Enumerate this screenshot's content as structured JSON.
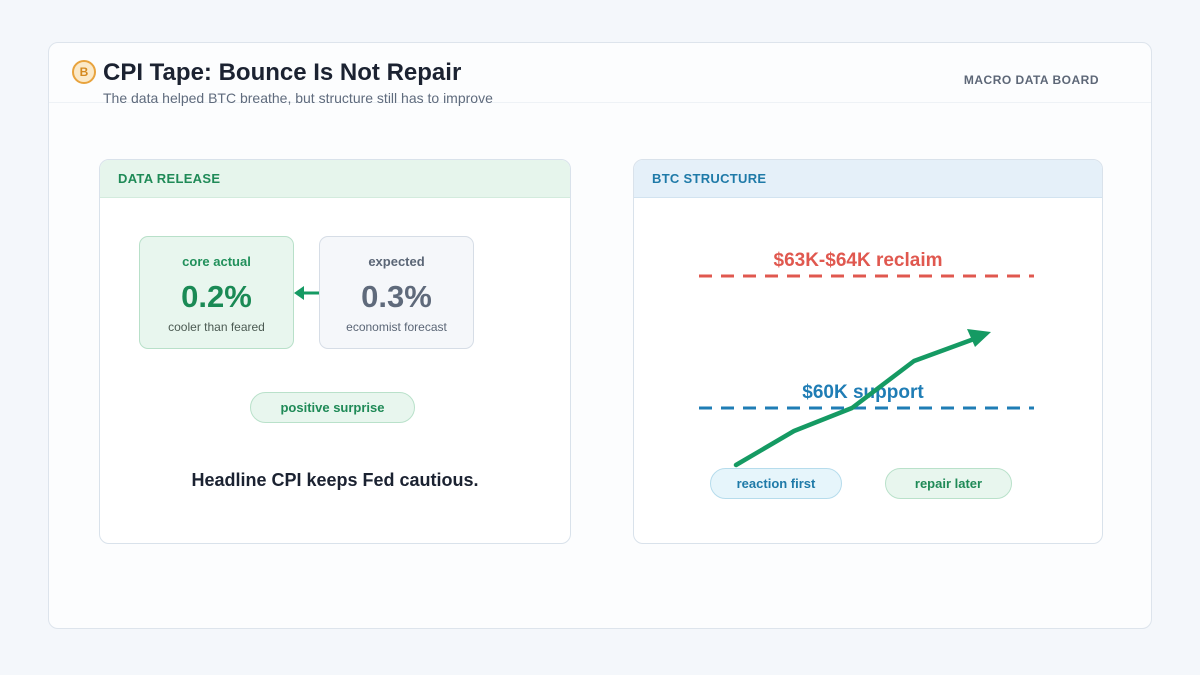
{
  "header": {
    "logo_letter": "B",
    "title": "CPI Tape: Bounce Is Not Repair",
    "subtitle": "The data helped BTC breathe, but structure still has to improve",
    "board_label": "MACRO DATA BOARD"
  },
  "data_release": {
    "heading": "DATA RELEASE",
    "actual": {
      "label": "core actual",
      "value": "0.2%",
      "note": "cooler than feared"
    },
    "expected": {
      "label": "expected",
      "value": "0.3%",
      "note": "economist forecast"
    },
    "surprise_pill": "positive surprise",
    "headline": "Headline CPI keeps Fed cautious."
  },
  "btc_structure": {
    "heading": "BTC STRUCTURE",
    "reclaim_label": "$63K-$64K reclaim",
    "support_label": "$60K support",
    "pill_reaction": "reaction first",
    "pill_repair": "repair later",
    "colors": {
      "reclaim": "#e0584f",
      "support": "#1f7db5",
      "path": "#159a63"
    }
  }
}
